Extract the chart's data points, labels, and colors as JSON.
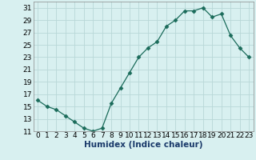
{
  "x": [
    0,
    1,
    2,
    3,
    4,
    5,
    6,
    7,
    8,
    9,
    10,
    11,
    12,
    13,
    14,
    15,
    16,
    17,
    18,
    19,
    20,
    21,
    22,
    23
  ],
  "y": [
    16,
    15,
    14.5,
    13.5,
    12.5,
    11.5,
    11,
    11.5,
    15.5,
    18,
    20.5,
    23,
    24.5,
    25.5,
    28,
    29,
    30.5,
    30.5,
    31,
    29.5,
    30,
    26.5,
    24.5,
    23
  ],
  "xlabel": "Humidex (Indice chaleur)",
  "ylim": [
    11,
    32
  ],
  "xlim": [
    -0.5,
    23.5
  ],
  "yticks": [
    11,
    13,
    15,
    17,
    19,
    21,
    23,
    25,
    27,
    29,
    31
  ],
  "xticks": [
    0,
    1,
    2,
    3,
    4,
    5,
    6,
    7,
    8,
    9,
    10,
    11,
    12,
    13,
    14,
    15,
    16,
    17,
    18,
    19,
    20,
    21,
    22,
    23
  ],
  "line_color": "#1a6b5a",
  "marker": "D",
  "marker_size": 2.5,
  "bg_color": "#d8f0f0",
  "grid_color": "#b8d8d8",
  "xlabel_fontsize": 7.5,
  "tick_fontsize": 6.5
}
